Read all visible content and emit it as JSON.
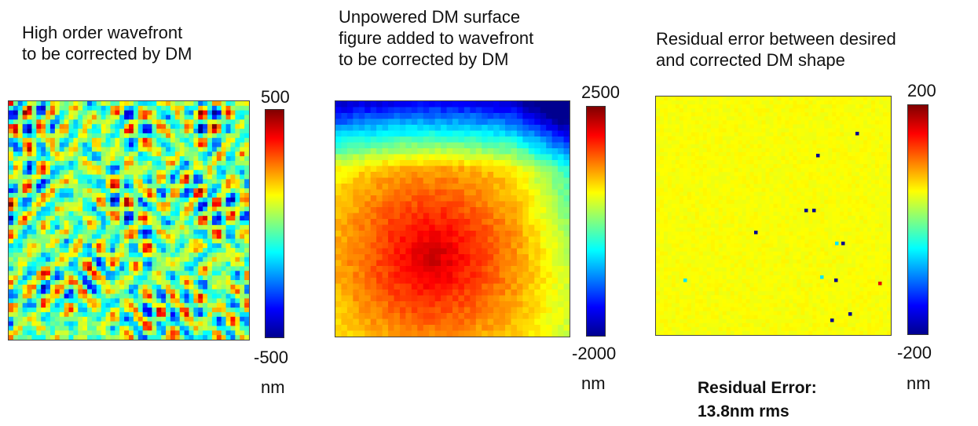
{
  "panels": [
    {
      "title": "High order wavefront\nto be corrected by DM",
      "colorbar": {
        "max": "500",
        "min": "-500",
        "unit": "nm"
      }
    },
    {
      "title": "Unpowered DM surface\nfigure added to wavefront\nto be corrected by DM",
      "colorbar": {
        "max": "2500",
        "min": "-2000",
        "unit": "nm"
      }
    },
    {
      "title": "Residual error between desired\nand corrected DM shape",
      "colorbar": {
        "max": "200",
        "min": "-200",
        "unit": "nm"
      }
    }
  ],
  "note": "Residual Error:\n13.8nm rms",
  "colormap": [
    "#00008f",
    "#0000ff",
    "#0080ff",
    "#00ffff",
    "#80ff80",
    "#ffff00",
    "#ff8000",
    "#ff0000",
    "#800000"
  ]
}
